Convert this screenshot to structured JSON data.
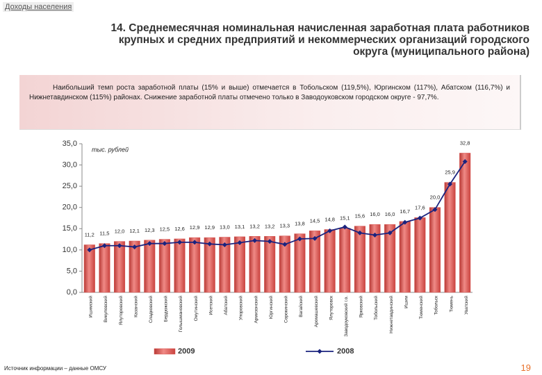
{
  "header": {
    "section": "Доходы населения",
    "title": [
      "14. Среднемесячная номинальная начисленная заработная плата работников",
      "крупных и средних предприятий и некоммерческих организаций городского",
      "округа (муниципального района)"
    ]
  },
  "note": "Наибольший темп роста заработной платы (15% и выше) отмечается в Тобольском (119,5%), Юргинском (117%), Абатском (116,7%) и Нижнетавдинском (115%) районах. Снижение заработной платы отмечено только в Заводоуковском городском округе - 97,7%.",
  "footer": {
    "source": "Источник информации – данные ОМСУ",
    "page": "19"
  },
  "chart_data": {
    "type": "bar",
    "y_axis_label": "тыс. рублей",
    "categories": [
      "Ишимский",
      "Викуловский",
      "Ялуторовский",
      "Казанский",
      "Сладковский",
      "Бердюжский",
      "Голышмановский",
      "Омутинский",
      "Исетский",
      "Абатский",
      "Упоровский",
      "Армизонский",
      "Юргинский",
      "Сорокинский",
      "Вагайский",
      "Аромашевский",
      "Ялуторовск",
      "Заводоуковский г.о.",
      "Ярковский",
      "Тобольский",
      "Нижнетавдинский",
      "Ишим",
      "Тюменский",
      "Тобольск",
      "Тюмень",
      "Уватский"
    ],
    "series": [
      {
        "name": "2009",
        "type": "bar",
        "color": "#d9534f",
        "values": [
          11.2,
          11.5,
          12.0,
          12.1,
          12.3,
          12.5,
          12.6,
          12.9,
          12.9,
          13.0,
          13.1,
          13.2,
          13.2,
          13.3,
          13.8,
          14.5,
          14.8,
          15.1,
          15.6,
          16.0,
          16.0,
          16.7,
          17.6,
          20.0,
          25.9,
          32.8
        ],
        "value_labels": [
          "11,2",
          "11,5",
          "12,0",
          "12,1",
          "12,3",
          "12,5",
          "12,6",
          "12,9",
          "12,9",
          "13,0",
          "13,1",
          "13,2",
          "13,2",
          "13,3",
          "13,8",
          "14,5",
          "14,8",
          "15,1",
          "15,6",
          "16,0",
          "16,0",
          "16,7",
          "17,6",
          "20,0",
          "25,9",
          "32,8"
        ]
      },
      {
        "name": "2008",
        "type": "line",
        "color": "#1a237e",
        "values": [
          10.0,
          11.0,
          11.0,
          10.7,
          11.5,
          11.5,
          11.8,
          11.8,
          11.4,
          11.2,
          11.7,
          12.2,
          12.0,
          11.3,
          12.6,
          12.7,
          14.5,
          15.4,
          14.0,
          13.5,
          14.0,
          16.5,
          17.5,
          19.5,
          25.5,
          30.8
        ]
      }
    ],
    "ylim": [
      0,
      35
    ],
    "yticks": [
      {
        "value": 0,
        "label": "0,0"
      },
      {
        "value": 5,
        "label": "5,0"
      },
      {
        "value": 10,
        "label": "10,0"
      },
      {
        "value": 15,
        "label": "15,0"
      },
      {
        "value": 20,
        "label": "20,0"
      },
      {
        "value": 25,
        "label": "25,0"
      },
      {
        "value": 30,
        "label": "30,0"
      },
      {
        "value": 35,
        "label": "35,0"
      }
    ],
    "legend": "bottom"
  }
}
